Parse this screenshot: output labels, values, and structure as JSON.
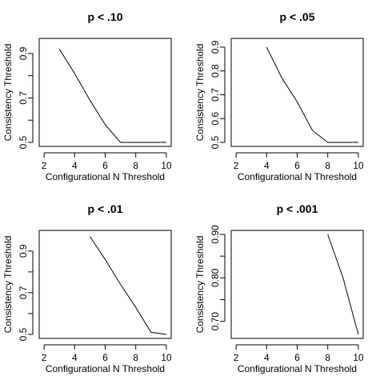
{
  "chart_data": [
    {
      "type": "line",
      "title": "p < .10",
      "xlabel": "Configurational N Threshold",
      "ylabel": "Consistency Threshold",
      "xlim": [
        2,
        10
      ],
      "ylim": [
        0.5,
        0.95
      ],
      "xticks": [
        2,
        4,
        6,
        8,
        10
      ],
      "yticks": [
        0.5,
        0.6,
        0.7,
        0.8,
        0.9
      ],
      "ytick_labels": [
        "0.5",
        "",
        "0.7",
        "",
        "0.9"
      ],
      "x": [
        3,
        4,
        5,
        6,
        7,
        8,
        9,
        10
      ],
      "y": [
        0.92,
        0.81,
        0.69,
        0.58,
        0.5,
        0.5,
        0.5,
        0.5
      ]
    },
    {
      "type": "line",
      "title": "p < .05",
      "xlabel": "Configurational N Threshold",
      "ylabel": "Consistency Threshold",
      "xlim": [
        2,
        10
      ],
      "ylim": [
        0.5,
        0.92
      ],
      "xticks": [
        2,
        4,
        6,
        8,
        10
      ],
      "yticks": [
        0.5,
        0.6,
        0.7,
        0.8,
        0.9
      ],
      "ytick_labels": [
        "0.5",
        "0.6",
        "0.7",
        "0.8",
        "0.9"
      ],
      "x": [
        4,
        5,
        6,
        7,
        8,
        9,
        10
      ],
      "y": [
        0.9,
        0.77,
        0.67,
        0.55,
        0.5,
        0.5,
        0.5
      ]
    },
    {
      "type": "line",
      "title": "p < .01",
      "xlabel": "Configurational N Threshold",
      "ylabel": "Consistency Threshold",
      "xlim": [
        2,
        10
      ],
      "ylim": [
        0.5,
        0.98
      ],
      "xticks": [
        2,
        4,
        6,
        8,
        10
      ],
      "yticks": [
        0.5,
        0.6,
        0.7,
        0.8,
        0.9
      ],
      "ytick_labels": [
        "0.5",
        "",
        "0.7",
        "",
        "0.9"
      ],
      "x": [
        5,
        6,
        7,
        8,
        9,
        10
      ],
      "y": [
        0.97,
        0.86,
        0.74,
        0.63,
        0.51,
        0.5
      ]
    },
    {
      "type": "line",
      "title": "p < .001",
      "xlabel": "Configurational N Threshold",
      "ylabel": "Consistency Threshold",
      "xlim": [
        2,
        10
      ],
      "ylim": [
        0.67,
        0.9
      ],
      "xticks": [
        2,
        4,
        6,
        8,
        10
      ],
      "yticks": [
        0.7,
        0.75,
        0.8,
        0.85,
        0.9
      ],
      "ytick_labels": [
        "0.70",
        "",
        "0.80",
        "",
        "0.90"
      ],
      "x": [
        8,
        9,
        10
      ],
      "y": [
        0.9,
        0.8,
        0.67
      ]
    }
  ]
}
